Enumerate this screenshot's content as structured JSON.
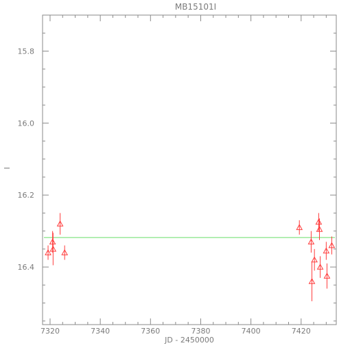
{
  "chart_data": {
    "type": "scatter",
    "title": "MB15101I",
    "xlabel": "JD - 2450000",
    "ylabel": "I",
    "xlim": [
      7317,
      7434
    ],
    "ylim": [
      16.56,
      15.7
    ],
    "y_inverted": true,
    "x_ticks": [
      7320,
      7340,
      7360,
      7380,
      7400,
      7420
    ],
    "x_tick_labels": [
      "7320",
      "7340",
      "7360",
      "7380",
      "7400",
      "7420"
    ],
    "y_ticks": [
      15.8,
      16.0,
      16.2,
      16.4
    ],
    "y_tick_labels": [
      "15.8",
      "16.0",
      "16.2",
      "16.4"
    ],
    "grid": false,
    "marker": "open-triangle",
    "series": [
      {
        "points": [
          {
            "x": 7319.2,
            "y": 16.36,
            "err": 0.02
          },
          {
            "x": 7321.0,
            "y": 16.33,
            "err": 0.03
          },
          {
            "x": 7321.2,
            "y": 16.35,
            "err": 0.045
          },
          {
            "x": 7324.0,
            "y": 16.28,
            "err": 0.03
          },
          {
            "x": 7325.8,
            "y": 16.36,
            "err": 0.02
          },
          {
            "x": 7419.3,
            "y": 16.29,
            "err": 0.02
          },
          {
            "x": 7424.0,
            "y": 16.33,
            "err": 0.03
          },
          {
            "x": 7424.3,
            "y": 16.44,
            "err": 0.055
          },
          {
            "x": 7425.3,
            "y": 16.38,
            "err": 0.03
          },
          {
            "x": 7427.0,
            "y": 16.275,
            "err": 0.025
          },
          {
            "x": 7427.3,
            "y": 16.295,
            "err": 0.03
          },
          {
            "x": 7427.6,
            "y": 16.4,
            "err": 0.03
          },
          {
            "x": 7430.0,
            "y": 16.355,
            "err": 0.025
          },
          {
            "x": 7430.3,
            "y": 16.425,
            "err": 0.035
          },
          {
            "x": 7432.2,
            "y": 16.34,
            "err": 0.025
          }
        ]
      }
    ],
    "reference_line": {
      "y": 16.318
    },
    "colors": {
      "points": "#ff3b3b",
      "reference_line": "#66dd66",
      "axes": "#8a8a8a",
      "text": "#7a7a7a"
    }
  }
}
